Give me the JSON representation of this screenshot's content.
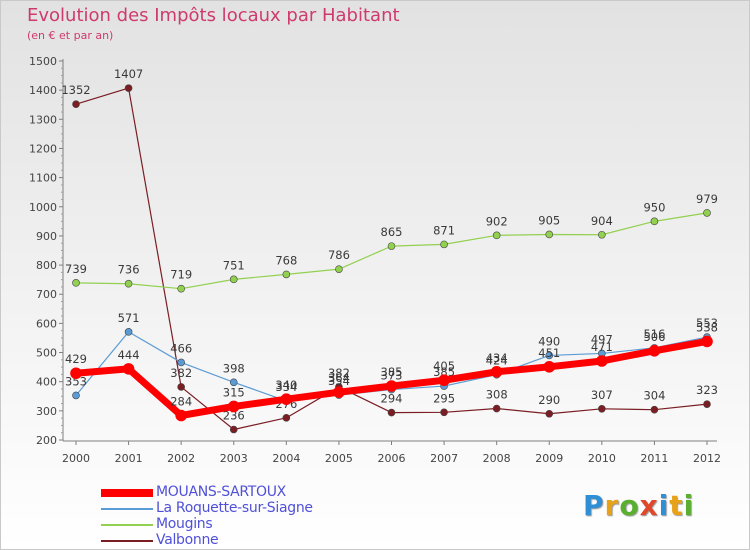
{
  "header": {
    "title": "Evolution des Impôts locaux par Habitant",
    "subtitle": "(en € et par an)"
  },
  "logo": {
    "text": "Proxiti",
    "colors": [
      "#2f8fd6",
      "#e8a21a",
      "#5ab02e",
      "#e0472b",
      "#2f8fd6",
      "#e8a21a",
      "#5ab02e"
    ]
  },
  "chart_data": {
    "type": "line",
    "title": "Evolution des Impôts locaux par Habitant",
    "subtitle": "(en € et par an)",
    "xlabel": "",
    "ylabel": "",
    "ylim": [
      200,
      1500
    ],
    "yticks": [
      200,
      300,
      400,
      500,
      600,
      700,
      800,
      900,
      1000,
      1100,
      1200,
      1300,
      1400,
      1500
    ],
    "grid": false,
    "legend_position": "bottom-left",
    "x": [
      "2000",
      "2001",
      "2002",
      "2003",
      "2004",
      "2005",
      "2006",
      "2007",
      "2008",
      "2009",
      "2010",
      "2011",
      "2012"
    ],
    "series": [
      {
        "name": "Valbonne",
        "color": "#7a1e24",
        "width": 1.2,
        "values": [
          1352,
          1407,
          382,
          236,
          276,
          382,
          294,
          295,
          308,
          290,
          307,
          304,
          323
        ]
      },
      {
        "name": "Mougins",
        "color": "#92d050",
        "width": 1.2,
        "values": [
          739,
          736,
          719,
          751,
          768,
          786,
          865,
          871,
          902,
          905,
          904,
          950,
          979
        ]
      },
      {
        "name": "La Roquette-sur-Siagne",
        "color": "#5b9bd5",
        "width": 1.2,
        "values": [
          353,
          571,
          466,
          398,
          334,
          354,
          373,
          385,
          424,
          490,
          497,
          516,
          553
        ]
      },
      {
        "name": "MOUANS-SARTOUX",
        "color": "#ff0000",
        "width": 7,
        "values": [
          429,
          444,
          284,
          315,
          340,
          364,
          385,
          405,
          434,
          451,
          471,
          506,
          538
        ]
      }
    ],
    "legend_order": [
      "MOUANS-SARTOUX",
      "La Roquette-sur-Siagne",
      "Mougins",
      "Valbonne"
    ]
  }
}
